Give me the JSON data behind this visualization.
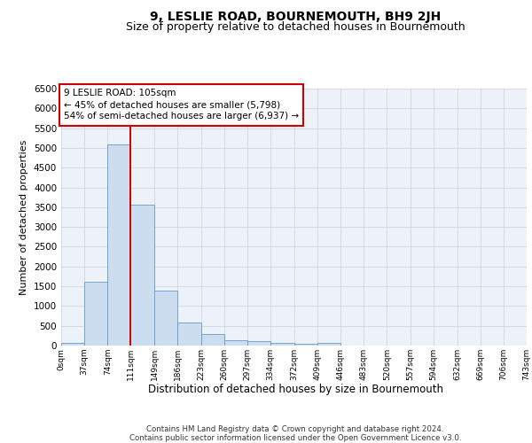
{
  "title": "9, LESLIE ROAD, BOURNEMOUTH, BH9 2JH",
  "subtitle": "Size of property relative to detached houses in Bournemouth",
  "xlabel": "Distribution of detached houses by size in Bournemouth",
  "ylabel": "Number of detached properties",
  "bin_edges": [
    0,
    37,
    74,
    111,
    149,
    186,
    223,
    260,
    297,
    334,
    372,
    409,
    446,
    483,
    520,
    557,
    594,
    632,
    669,
    706,
    743
  ],
  "bar_heights": [
    75,
    1620,
    5080,
    3570,
    1390,
    580,
    290,
    140,
    105,
    75,
    55,
    65,
    0,
    0,
    0,
    0,
    0,
    0,
    0,
    0
  ],
  "bar_color": "#ccddf0",
  "bar_edgecolor": "#6699cc",
  "property_line_x": 111,
  "property_line_color": "#cc0000",
  "annotation_text": "9 LESLIE ROAD: 105sqm\n← 45% of detached houses are smaller (5,798)\n54% of semi-detached houses are larger (6,937) →",
  "annotation_box_color": "#ffffff",
  "annotation_box_edgecolor": "#cc0000",
  "ylim": [
    0,
    6500
  ],
  "yticks": [
    0,
    500,
    1000,
    1500,
    2000,
    2500,
    3000,
    3500,
    4000,
    4500,
    5000,
    5500,
    6000,
    6500
  ],
  "footer_line1": "Contains HM Land Registry data © Crown copyright and database right 2024.",
  "footer_line2": "Contains public sector information licensed under the Open Government Licence v3.0.",
  "bg_color": "#ffffff",
  "plot_bg_color": "#edf2f9",
  "grid_color": "#c8d0dc",
  "title_fontsize": 10,
  "subtitle_fontsize": 9
}
